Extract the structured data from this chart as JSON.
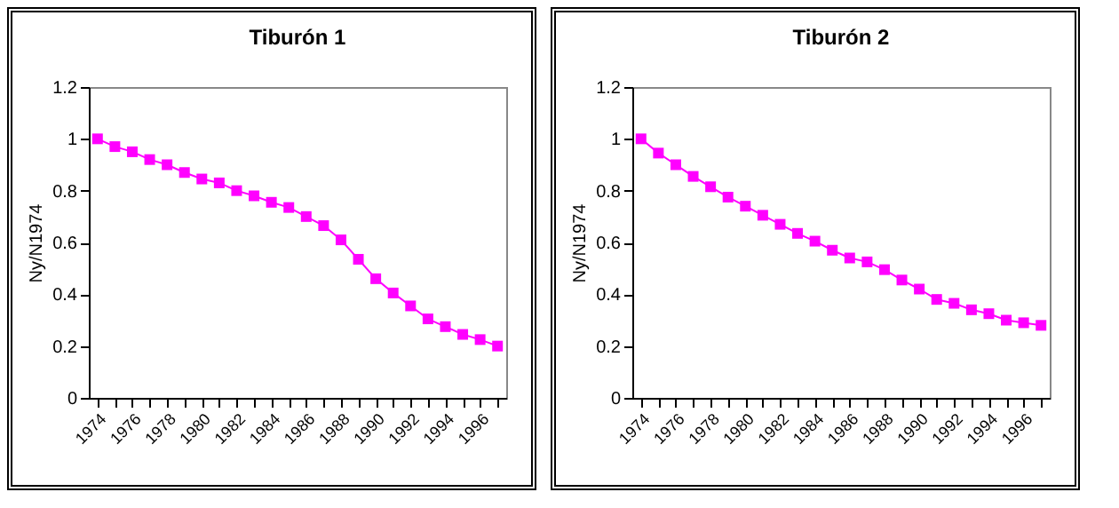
{
  "chart_data": [
    {
      "type": "line",
      "title": "Tiburón 1",
      "ylabel": "Ny/N1974",
      "categories": [
        "1974",
        null,
        "1976",
        null,
        "1978",
        null,
        "1980",
        null,
        "1982",
        null,
        "1984",
        null,
        "1986",
        null,
        "1988",
        null,
        "1990",
        null,
        "1992",
        null,
        "1994",
        null,
        "1996",
        null
      ],
      "series": [
        {
          "color": "#ff00ff",
          "values": [
            1.0,
            0.97,
            0.95,
            0.92,
            0.9,
            0.87,
            0.845,
            0.83,
            0.8,
            0.78,
            0.755,
            0.735,
            0.7,
            0.665,
            0.61,
            0.535,
            0.46,
            0.405,
            0.355,
            0.305,
            0.275,
            0.245,
            0.225,
            0.2
          ]
        }
      ],
      "ylim": [
        0,
        1.2
      ],
      "yticks": [
        0,
        0.2,
        0.4,
        0.6,
        0.8,
        1,
        1.2
      ],
      "grid": false,
      "marker": "square"
    },
    {
      "type": "line",
      "title": "Tiburón 2",
      "ylabel": "Ny/N1974",
      "categories": [
        "1974",
        null,
        "1976",
        null,
        "1978",
        null,
        "1980",
        null,
        "1982",
        null,
        "1984",
        null,
        "1986",
        null,
        "1988",
        null,
        "1990",
        null,
        "1992",
        null,
        "1994",
        null,
        "1996",
        null
      ],
      "series": [
        {
          "color": "#ff00ff",
          "values": [
            1.0,
            0.945,
            0.9,
            0.855,
            0.815,
            0.775,
            0.74,
            0.705,
            0.67,
            0.635,
            0.605,
            0.57,
            0.54,
            0.525,
            0.495,
            0.455,
            0.42,
            0.38,
            0.365,
            0.34,
            0.325,
            0.3,
            0.29,
            0.28
          ]
        }
      ],
      "ylim": [
        0,
        1.2
      ],
      "yticks": [
        0,
        0.2,
        0.4,
        0.6,
        0.8,
        1,
        1.2
      ],
      "grid": false,
      "marker": "square"
    }
  ]
}
